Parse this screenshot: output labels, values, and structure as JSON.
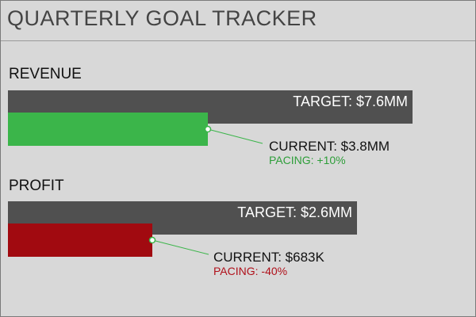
{
  "title": "QUARTERLY GOAL TRACKER",
  "colors": {
    "background": "#d8d8d8",
    "target_bar": "#505050",
    "revenue_bar": "#3bb54a",
    "profit_bar": "#a10a10",
    "positive": "#2e9e3a",
    "negative": "#b0101a",
    "connector": "#3bb54a"
  },
  "sections": [
    {
      "label": "REVENUE",
      "target_label": "TARGET: $7.6MM",
      "current_label": "CURRENT: $3.8MM",
      "pacing_label": "PACING: +10%",
      "target_value": 7.6,
      "current_value": 3.8
    },
    {
      "label": "PROFIT",
      "target_label": "TARGET: $2.6MM",
      "current_label": "CURRENT: $683K",
      "pacing_label": "PACING: -40%",
      "target_value": 2.6,
      "current_value": 0.683
    }
  ]
}
